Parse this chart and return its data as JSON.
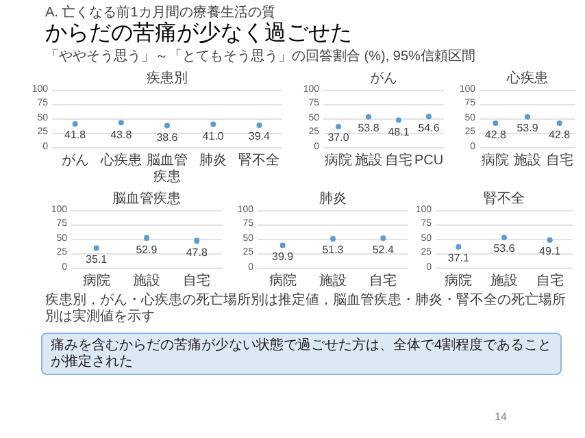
{
  "chart_data": [
    {
      "type": "scatter",
      "title": "疾患別",
      "categories": [
        "がん",
        "心疾患",
        "脳血管疾患",
        "肺炎",
        "腎不全"
      ],
      "values": [
        41.8,
        43.8,
        38.6,
        41.0,
        39.4
      ],
      "value_labels": [
        "41.8",
        "43.8",
        "38.6",
        "41.0",
        "39.4"
      ],
      "errors": [
        2,
        2,
        3,
        2,
        2
      ],
      "color": "#5b9bd5",
      "marker": "circle",
      "ylim": [
        0,
        100
      ],
      "yticks": [
        0,
        25,
        50,
        75,
        100
      ],
      "grid": "y",
      "annotations": [
        "A. 亡くなる前1カ月間の療養生活の質",
        "からだの苦痛が少なく過ごせた",
        "「ややそう思う」～「とてもそう思う」の回答割合 (%), 95%信頼区間"
      ]
    },
    {
      "type": "scatter",
      "title": "がん",
      "categories": [
        "病院",
        "施設",
        "自宅",
        "PCU"
      ],
      "values": [
        37.0,
        53.8,
        48.1,
        54.6
      ],
      "value_labels": [
        "37.0",
        "53.8",
        "48.1",
        "54.6"
      ],
      "errors": [
        1,
        2,
        2,
        2
      ],
      "color": "#5b9bd5",
      "marker": "circle",
      "ylim": [
        0,
        100
      ],
      "yticks": [
        0,
        25,
        50,
        75,
        100
      ],
      "grid": "y"
    },
    {
      "type": "scatter",
      "title": "心疾患",
      "categories": [
        "病院",
        "施設",
        "自宅"
      ],
      "values": [
        42.8,
        53.9,
        42.8
      ],
      "value_labels": [
        "42.8",
        "53.9",
        "42.8"
      ],
      "errors": [
        1,
        2,
        2
      ],
      "color": "#5b9bd5",
      "marker": "circle",
      "ylim": [
        0,
        100
      ],
      "yticks": [
        0,
        25,
        50,
        75,
        100
      ],
      "grid": "y"
    },
    {
      "type": "scatter",
      "title": "脳血管疾患",
      "categories": [
        "病院",
        "施設",
        "自宅"
      ],
      "values": [
        35.1,
        52.9,
        47.8
      ],
      "value_labels": [
        "35.1",
        "52.9",
        "47.8"
      ],
      "errors": [
        3,
        4,
        4
      ],
      "color": "#5b9bd5",
      "marker": "circle",
      "ylim": [
        0,
        100
      ],
      "yticks": [
        0,
        25,
        50,
        75,
        100
      ],
      "grid": "y"
    },
    {
      "type": "scatter",
      "title": "肺炎",
      "categories": [
        "病院",
        "施設",
        "自宅"
      ],
      "values": [
        39.9,
        51.3,
        52.4
      ],
      "value_labels": [
        "39.9",
        "51.3",
        "52.4"
      ],
      "errors": [
        3,
        3,
        3
      ],
      "color": "#5b9bd5",
      "marker": "circle",
      "ylim": [
        0,
        100
      ],
      "yticks": [
        0,
        25,
        50,
        75,
        100
      ],
      "grid": "y"
    },
    {
      "type": "scatter",
      "title": "腎不全",
      "categories": [
        "病院",
        "施設",
        "自宅"
      ],
      "values": [
        37.1,
        53.6,
        49.1
      ],
      "value_labels": [
        "37.1",
        "53.6",
        "49.1"
      ],
      "errors": [
        3,
        3,
        3
      ],
      "color": "#5b9bd5",
      "marker": "circle",
      "ylim": [
        0,
        100
      ],
      "yticks": [
        0,
        25,
        50,
        75,
        100
      ],
      "grid": "y",
      "annotations": [
        "疾患別，がん・心疾患の死亡場所別は推定値，脳血管疾患・肺炎・腎不全の死亡場所別は実測値を示す",
        "痛みを含むからだの苦痛が少ない状態で過ごせた方は、全体で4割程度であることが推定された",
        "14"
      ]
    }
  ]
}
